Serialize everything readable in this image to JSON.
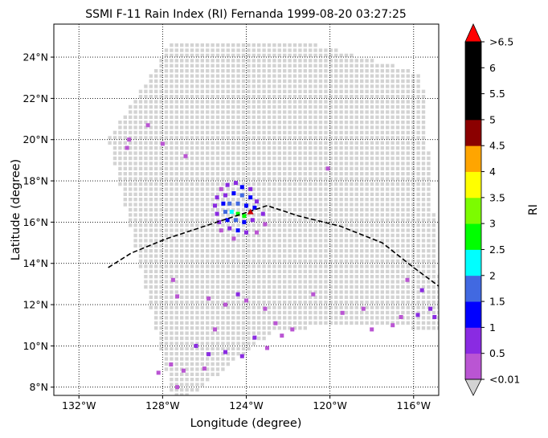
{
  "chart_data": {
    "type": "heatmap",
    "title": "SSMI F-11 Rain Index (RI) Fernanda 1999-08-20 03:27:25",
    "xlabel": "Longitude (degree)",
    "ylabel": "Latitude (degree)",
    "xlim": [
      -133.2,
      -114.8
    ],
    "ylim": [
      7.6,
      25.6
    ],
    "grid": true,
    "x_ticks": [
      {
        "value": -132,
        "label": "132°W"
      },
      {
        "value": -128,
        "label": "128°W"
      },
      {
        "value": -124,
        "label": "124°W"
      },
      {
        "value": -120,
        "label": "120°W"
      },
      {
        "value": -116,
        "label": "116°W"
      }
    ],
    "y_ticks": [
      {
        "value": 8,
        "label": "8°N"
      },
      {
        "value": 10,
        "label": "10°N"
      },
      {
        "value": 12,
        "label": "12°N"
      },
      {
        "value": 14,
        "label": "14°N"
      },
      {
        "value": 16,
        "label": "16°N"
      },
      {
        "value": 18,
        "label": "18°N"
      },
      {
        "value": 20,
        "label": "20°N"
      },
      {
        "value": 22,
        "label": "22°N"
      },
      {
        "value": 24,
        "label": "24°N"
      }
    ],
    "swath": {
      "no_rain_color": "#d3d3d3",
      "corners": [
        [
          -130.6,
          20.0
        ],
        [
          -127.6,
          24.7
        ],
        [
          -121.0,
          24.7
        ],
        [
          -115.6,
          23.2
        ],
        [
          -114.8,
          13.5
        ],
        [
          -114.8,
          10.8
        ],
        [
          -118.3,
          11.0
        ],
        [
          -122.6,
          10.8
        ],
        [
          -127.4,
          7.0
        ]
      ]
    },
    "track": {
      "style": "dashed",
      "color": "#000000",
      "points": [
        [
          -130.6,
          13.8
        ],
        [
          -129.5,
          14.5
        ],
        [
          -127.8,
          15.2
        ],
        [
          -126.0,
          15.8
        ],
        [
          -124.5,
          16.3
        ],
        [
          -123.0,
          16.8
        ],
        [
          -121.5,
          16.3
        ],
        [
          -119.5,
          15.8
        ],
        [
          -117.5,
          15.0
        ],
        [
          -116.0,
          13.8
        ],
        [
          -114.8,
          12.9
        ]
      ]
    },
    "storm_center": {
      "lon": -123.8,
      "lat": 16.5,
      "color": "#cc0000"
    },
    "rain_cells": [
      {
        "lon": -125.2,
        "lat": 17.6,
        "ri": 0.3
      },
      {
        "lon": -124.9,
        "lat": 17.8,
        "ri": 0.6
      },
      {
        "lon": -124.5,
        "lat": 17.9,
        "ri": 0.8
      },
      {
        "lon": -124.2,
        "lat": 17.7,
        "ri": 1.2
      },
      {
        "lon": -123.8,
        "lat": 17.6,
        "ri": 0.7
      },
      {
        "lon": -125.4,
        "lat": 17.2,
        "ri": 0.5
      },
      {
        "lon": -125.0,
        "lat": 17.3,
        "ri": 0.9
      },
      {
        "lon": -124.6,
        "lat": 17.4,
        "ri": 1.3
      },
      {
        "lon": -124.2,
        "lat": 17.3,
        "ri": 1.6
      },
      {
        "lon": -123.8,
        "lat": 17.2,
        "ri": 1.2
      },
      {
        "lon": -123.5,
        "lat": 17.0,
        "ri": 0.8
      },
      {
        "lon": -125.5,
        "lat": 16.8,
        "ri": 0.6
      },
      {
        "lon": -125.1,
        "lat": 16.9,
        "ri": 1.1
      },
      {
        "lon": -124.8,
        "lat": 16.9,
        "ri": 1.7
      },
      {
        "lon": -124.4,
        "lat": 16.9,
        "ri": 1.9
      },
      {
        "lon": -124.0,
        "lat": 16.8,
        "ri": 1.4
      },
      {
        "lon": -123.6,
        "lat": 16.7,
        "ri": 1.1
      },
      {
        "lon": -125.4,
        "lat": 16.4,
        "ri": 0.8
      },
      {
        "lon": -125.0,
        "lat": 16.5,
        "ri": 1.5
      },
      {
        "lon": -124.7,
        "lat": 16.5,
        "ri": 2.2
      },
      {
        "lon": -124.4,
        "lat": 16.4,
        "ri": 2.7
      },
      {
        "lon": -124.1,
        "lat": 16.3,
        "ri": 2.8
      },
      {
        "lon": -123.8,
        "lat": 16.5,
        "ri": 1.6
      },
      {
        "lon": -125.3,
        "lat": 16.0,
        "ri": 0.7
      },
      {
        "lon": -124.9,
        "lat": 16.1,
        "ri": 1.2
      },
      {
        "lon": -124.5,
        "lat": 16.1,
        "ri": 1.8
      },
      {
        "lon": -124.1,
        "lat": 16.0,
        "ri": 1.3
      },
      {
        "lon": -123.7,
        "lat": 16.1,
        "ri": 0.9
      },
      {
        "lon": -125.2,
        "lat": 15.6,
        "ri": 0.4
      },
      {
        "lon": -124.8,
        "lat": 15.7,
        "ri": 0.7
      },
      {
        "lon": -124.4,
        "lat": 15.6,
        "ri": 1.0
      },
      {
        "lon": -124.0,
        "lat": 15.5,
        "ri": 0.6
      },
      {
        "lon": -124.6,
        "lat": 15.2,
        "ri": 0.3
      },
      {
        "lon": -123.2,
        "lat": 16.4,
        "ri": 0.5
      },
      {
        "lon": -123.1,
        "lat": 15.9,
        "ri": 0.3
      },
      {
        "lon": -123.5,
        "lat": 15.5,
        "ri": 0.4
      },
      {
        "lon": -129.6,
        "lat": 20.0,
        "ri": 0.3
      },
      {
        "lon": -129.7,
        "lat": 19.6,
        "ri": 0.2
      },
      {
        "lon": -128.7,
        "lat": 20.7,
        "ri": 0.3
      },
      {
        "lon": -128.0,
        "lat": 19.8,
        "ri": 0.2
      },
      {
        "lon": -126.9,
        "lat": 19.2,
        "ri": 0.3
      },
      {
        "lon": -120.1,
        "lat": 18.6,
        "ri": 0.3
      },
      {
        "lon": -127.5,
        "lat": 13.2,
        "ri": 0.3
      },
      {
        "lon": -127.3,
        "lat": 12.4,
        "ri": 0.2
      },
      {
        "lon": -125.8,
        "lat": 12.3,
        "ri": 0.3
      },
      {
        "lon": -125.0,
        "lat": 12.0,
        "ri": 0.2
      },
      {
        "lon": -124.4,
        "lat": 12.5,
        "ri": 0.6
      },
      {
        "lon": -124.0,
        "lat": 12.2,
        "ri": 0.3
      },
      {
        "lon": -123.1,
        "lat": 11.8,
        "ri": 0.2
      },
      {
        "lon": -121.8,
        "lat": 10.8,
        "ri": 0.2
      },
      {
        "lon": -119.4,
        "lat": 11.6,
        "ri": 0.3
      },
      {
        "lon": -118.4,
        "lat": 11.8,
        "ri": 0.2
      },
      {
        "lon": -118.0,
        "lat": 10.8,
        "ri": 0.3
      },
      {
        "lon": -116.6,
        "lat": 11.4,
        "ri": 0.4
      },
      {
        "lon": -116.3,
        "lat": 13.2,
        "ri": 0.4
      },
      {
        "lon": -115.6,
        "lat": 12.7,
        "ri": 0.7
      },
      {
        "lon": -115.2,
        "lat": 11.8,
        "ri": 0.8
      },
      {
        "lon": -115.0,
        "lat": 11.4,
        "ri": 0.9
      },
      {
        "lon": -115.8,
        "lat": 11.5,
        "ri": 0.6
      },
      {
        "lon": -117.0,
        "lat": 11.0,
        "ri": 0.2
      },
      {
        "lon": -125.5,
        "lat": 10.8,
        "ri": 0.3
      },
      {
        "lon": -126.4,
        "lat": 10.0,
        "ri": 0.5
      },
      {
        "lon": -125.8,
        "lat": 9.6,
        "ri": 0.7
      },
      {
        "lon": -125.0,
        "lat": 9.7,
        "ri": 0.8
      },
      {
        "lon": -124.2,
        "lat": 9.5,
        "ri": 0.6
      },
      {
        "lon": -123.6,
        "lat": 10.4,
        "ri": 0.5
      },
      {
        "lon": -123.0,
        "lat": 9.9,
        "ri": 0.4
      },
      {
        "lon": -127.6,
        "lat": 9.1,
        "ri": 0.3
      },
      {
        "lon": -128.2,
        "lat": 8.7,
        "ri": 0.2
      },
      {
        "lon": -127.0,
        "lat": 8.8,
        "ri": 0.3
      },
      {
        "lon": -126.0,
        "lat": 8.9,
        "ri": 0.2
      },
      {
        "lon": -127.3,
        "lat": 8.0,
        "ri": 0.2
      },
      {
        "lon": -122.3,
        "lat": 10.5,
        "ri": 0.3
      },
      {
        "lon": -122.6,
        "lat": 11.1,
        "ri": 0.2
      },
      {
        "lon": -120.8,
        "lat": 12.5,
        "ri": 0.2
      }
    ],
    "colorbar": {
      "label": "RI",
      "bins": [
        {
          "color": "#ba55d3",
          "from_label": "<0.01",
          "to_label": "0.5"
        },
        {
          "color": "#8a2be2",
          "from_label": "0.5",
          "to_label": "1"
        },
        {
          "color": "#0000ff",
          "from_label": "1",
          "to_label": "1.5"
        },
        {
          "color": "#4169e1",
          "from_label": "1.5",
          "to_label": "2"
        },
        {
          "color": "#00ffff",
          "from_label": "2",
          "to_label": "2.5"
        },
        {
          "color": "#00ff00",
          "from_label": "2.5",
          "to_label": "3"
        },
        {
          "color": "#7cfc00",
          "from_label": "3",
          "to_label": "3.5"
        },
        {
          "color": "#ffff00",
          "from_label": "3.5",
          "to_label": "4"
        },
        {
          "color": "#ffa500",
          "from_label": "4",
          "to_label": "4.5"
        },
        {
          "color": "#8b0000",
          "from_label": "4.5",
          "to_label": "5"
        },
        {
          "color": "#000000",
          "from_label": "5",
          "to_label": "5.5"
        },
        {
          "color": "#000000",
          "from_label": "5.5",
          "to_label": "6"
        },
        {
          "color": "#000000",
          "from_label": "6",
          "to_label": ">6.5"
        }
      ],
      "under_color": "#d3d3d3",
      "over_color": "#ff0000",
      "tick_labels": [
        "<0.01",
        "0.5",
        "1",
        "1.5",
        "2",
        "2.5",
        "3",
        "3.5",
        "4",
        "4.5",
        "5",
        "5.5",
        "6",
        ">6.5"
      ],
      "thresholds": [
        0.01,
        0.5,
        1,
        1.5,
        2,
        2.5,
        3,
        3.5,
        4,
        4.5,
        5,
        5.5,
        6,
        6.5
      ]
    }
  }
}
